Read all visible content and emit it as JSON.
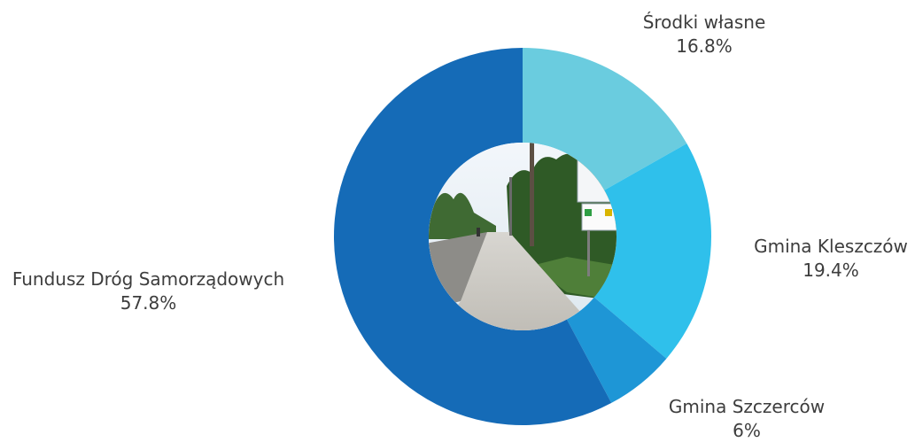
{
  "chart_data": {
    "type": "pie",
    "variant": "donut",
    "title": "",
    "legend": "none",
    "center": "photo of a village road with a pavement, trees and an information board",
    "slices": [
      {
        "label": "Środki własne",
        "value": 16.8,
        "value_label": "16.8%",
        "color": "#6accdf"
      },
      {
        "label": "Gmina Kleszczów",
        "value": 19.4,
        "value_label": "19.4%",
        "color": "#2fc0eb"
      },
      {
        "label": "Gmina Szczerców",
        "value": 6.0,
        "value_label": "6%",
        "color": "#1e96d6"
      },
      {
        "label": "Fundusz Dróg Samorządowych",
        "value": 57.8,
        "value_label": "57.8%",
        "color": "#156bb7"
      }
    ]
  }
}
